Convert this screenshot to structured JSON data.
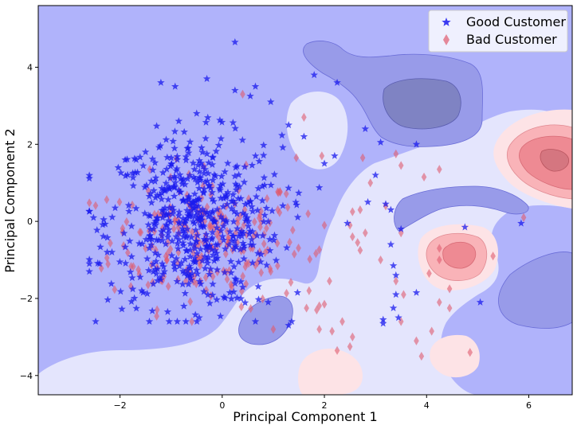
{
  "chart_data": {
    "type": "scatter",
    "title": "",
    "xlabel": "Principal Component 1",
    "ylabel": "Principal Component 2",
    "xlim": [
      -3.6,
      6.85
    ],
    "ylim": [
      -4.5,
      5.6
    ],
    "xticks": [
      -2,
      0,
      2,
      4,
      6
    ],
    "yticks": [
      -4,
      -2,
      0,
      2,
      4
    ],
    "xtick_labels": [
      "−2",
      "0",
      "2",
      "4",
      "6"
    ],
    "ytick_labels": [
      "−4",
      "−2",
      "0",
      "2",
      "4"
    ],
    "background": "decision-function contour (blue = good, red = bad)",
    "legend_position": "top-right",
    "series": [
      {
        "name": "Good Customer",
        "marker": "star",
        "color": "#1a1aee",
        "points": [
          [
            0.25,
            4.65
          ],
          [
            0.55,
            3.25
          ],
          [
            0.95,
            3.1
          ],
          [
            1.3,
            2.5
          ],
          [
            1.8,
            3.8
          ],
          [
            2.25,
            3.6
          ],
          [
            1.6,
            2.2
          ],
          [
            2.8,
            2.4
          ],
          [
            3.1,
            2.05
          ],
          [
            3.8,
            2.0
          ],
          [
            2.0,
            1.5
          ],
          [
            2.2,
            1.7
          ],
          [
            3.0,
            1.2
          ],
          [
            2.85,
            0.5
          ],
          [
            3.2,
            0.45
          ],
          [
            3.3,
            0.3
          ],
          [
            2.45,
            -0.05
          ],
          [
            3.3,
            -0.6
          ],
          [
            3.5,
            -0.2
          ],
          [
            3.35,
            -1.15
          ],
          [
            3.4,
            -1.4
          ],
          [
            3.35,
            -2.25
          ],
          [
            3.45,
            -2.5
          ],
          [
            3.15,
            -2.55
          ],
          [
            3.15,
            -2.65
          ],
          [
            3.8,
            -1.85
          ],
          [
            3.4,
            -1.9
          ],
          [
            4.75,
            -0.15
          ],
          [
            5.05,
            -2.1
          ],
          [
            5.85,
            -0.05
          ],
          [
            0.65,
            -2.6
          ],
          [
            0.9,
            -2.1
          ],
          [
            0.15,
            -1.85
          ],
          [
            -0.45,
            -2.5
          ],
          [
            -0.75,
            -2.2
          ],
          [
            1.3,
            -2.7
          ],
          [
            -2.4,
            -1.1
          ],
          [
            -2.6,
            -1.1
          ],
          [
            -2.25,
            -0.8
          ],
          [
            -1.2,
            3.6
          ],
          [
            -0.85,
            2.6
          ],
          [
            -0.5,
            2.8
          ],
          [
            0.25,
            3.4
          ],
          [
            0.65,
            3.5
          ],
          [
            -1.5,
            1.8
          ],
          [
            -1.75,
            1.25
          ],
          [
            -0.3,
            3.7
          ]
        ],
        "cluster": {
          "n": 560,
          "center": [
            -0.55,
            0.0
          ],
          "spread": [
            0.85,
            1.1
          ]
        }
      },
      {
        "name": "Bad Customer",
        "marker": "diamond",
        "color": "#e05a6e",
        "points": [
          [
            0.4,
            3.3
          ],
          [
            1.45,
            1.65
          ],
          [
            1.6,
            2.7
          ],
          [
            1.95,
            1.7
          ],
          [
            2.75,
            1.65
          ],
          [
            2.9,
            1.0
          ],
          [
            3.4,
            1.75
          ],
          [
            3.5,
            1.45
          ],
          [
            3.95,
            1.15
          ],
          [
            4.25,
            1.35
          ],
          [
            2.0,
            -0.1
          ],
          [
            2.55,
            0.25
          ],
          [
            2.7,
            0.3
          ],
          [
            2.8,
            -0.3
          ],
          [
            3.2,
            0.4
          ],
          [
            3.5,
            -0.3
          ],
          [
            2.55,
            -0.4
          ],
          [
            2.65,
            -0.55
          ],
          [
            2.7,
            -0.75
          ],
          [
            2.5,
            -0.1
          ],
          [
            3.1,
            -1.0
          ],
          [
            3.4,
            -1.55
          ],
          [
            3.55,
            -1.9
          ],
          [
            4.25,
            -0.7
          ],
          [
            4.25,
            -1.0
          ],
          [
            4.05,
            -1.35
          ],
          [
            3.5,
            -2.6
          ],
          [
            3.8,
            -3.1
          ],
          [
            3.9,
            -3.5
          ],
          [
            4.1,
            -2.85
          ],
          [
            4.25,
            -2.1
          ],
          [
            4.45,
            -1.75
          ],
          [
            4.45,
            -2.25
          ],
          [
            4.85,
            -3.4
          ],
          [
            5.3,
            -0.9
          ],
          [
            5.9,
            0.1
          ],
          [
            1.7,
            -1.8
          ],
          [
            2.0,
            -2.15
          ],
          [
            2.15,
            -2.85
          ],
          [
            2.35,
            -2.6
          ],
          [
            2.55,
            -3.0
          ],
          [
            2.5,
            -3.25
          ],
          [
            2.25,
            -3.35
          ],
          [
            1.85,
            -2.3
          ],
          [
            1.65,
            -2.25
          ],
          [
            1.9,
            -2.8
          ],
          [
            2.1,
            -1.55
          ],
          [
            1.0,
            -2.8
          ],
          [
            0.95,
            -1.3
          ]
        ],
        "cluster": {
          "n": 230,
          "center": [
            -0.3,
            -0.5
          ],
          "spread": [
            0.95,
            0.85
          ]
        }
      }
    ]
  }
}
